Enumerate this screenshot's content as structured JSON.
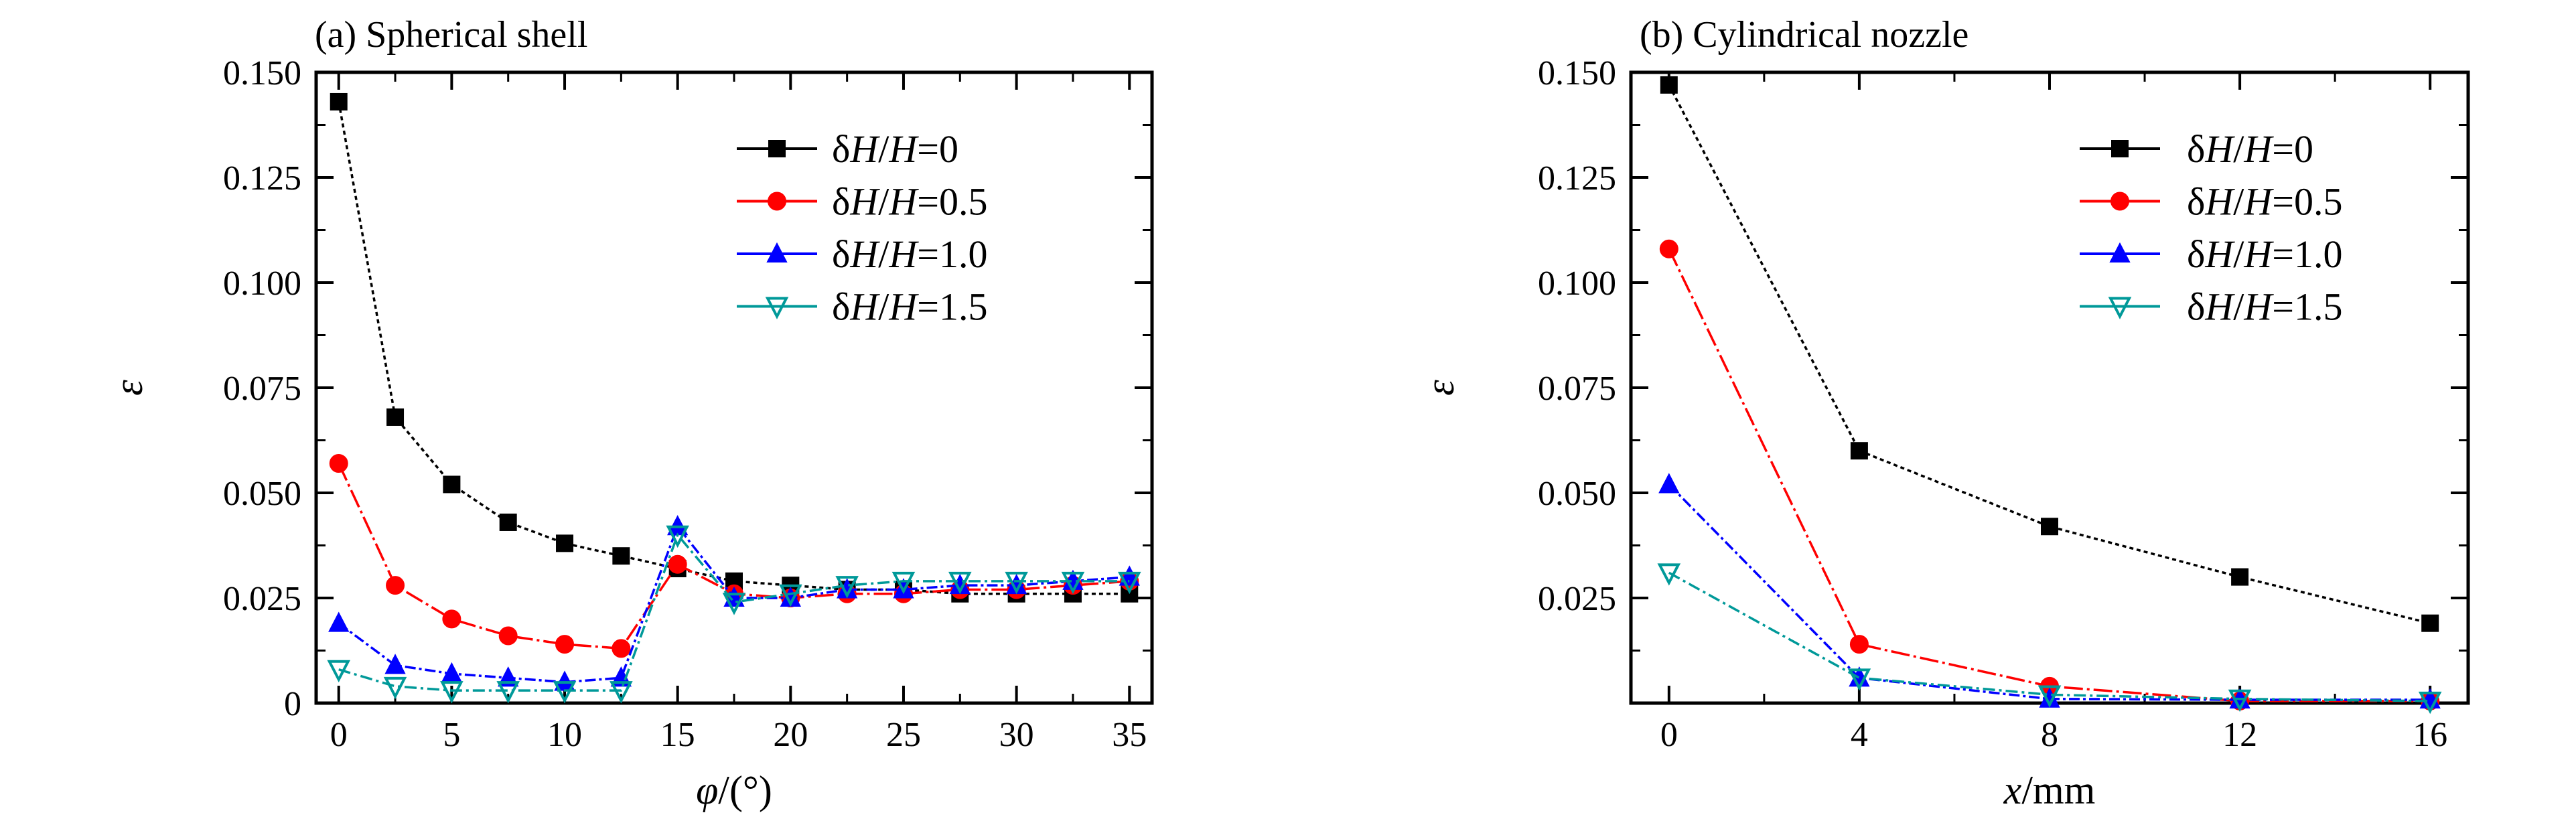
{
  "chart_data": [
    {
      "type": "line",
      "title": "(a) Spherical shell",
      "xlabel_var": "φ",
      "xlabel_unit": "/(°)",
      "ylabel": "ε",
      "xlim": [
        -1,
        36
      ],
      "ylim": [
        0,
        0.15
      ],
      "xticks": [
        0,
        5,
        10,
        15,
        20,
        25,
        30,
        35
      ],
      "xtick_labels": [
        "0",
        "5",
        "10",
        "15",
        "20",
        "25",
        "30",
        "35"
      ],
      "yticks": [
        0,
        0.025,
        0.05,
        0.075,
        0.1,
        0.125,
        0.15
      ],
      "ytick_labels": [
        "0",
        "0.025",
        "0.050",
        "0.075",
        "0.100",
        "0.125",
        "0.150"
      ],
      "legend_position": "top-right",
      "series": [
        {
          "name": "δH/H=0",
          "color": "#000000",
          "marker": "square",
          "x": [
            0,
            2.5,
            5,
            7.5,
            10,
            12.5,
            15,
            17.5,
            20,
            22.5,
            25,
            27.5,
            30,
            32.5,
            35
          ],
          "y": [
            0.143,
            0.068,
            0.052,
            0.043,
            0.038,
            0.035,
            0.032,
            0.029,
            0.028,
            0.027,
            0.027,
            0.026,
            0.026,
            0.026,
            0.026
          ]
        },
        {
          "name": "δH/H=0.5",
          "color": "#ff0000",
          "marker": "circle",
          "x": [
            0,
            2.5,
            5,
            7.5,
            10,
            12.5,
            15,
            17.5,
            20,
            22.5,
            25,
            27.5,
            30,
            32.5,
            35
          ],
          "y": [
            0.057,
            0.028,
            0.02,
            0.016,
            0.014,
            0.013,
            0.033,
            0.026,
            0.025,
            0.026,
            0.026,
            0.027,
            0.027,
            0.028,
            0.029
          ]
        },
        {
          "name": "δH/H=1.0",
          "color": "#0000ff",
          "marker": "triangle-up",
          "x": [
            0,
            2.5,
            5,
            7.5,
            10,
            12.5,
            15,
            17.5,
            20,
            22.5,
            25,
            27.5,
            30,
            32.5,
            35
          ],
          "y": [
            0.019,
            0.009,
            0.007,
            0.006,
            0.005,
            0.006,
            0.042,
            0.025,
            0.025,
            0.027,
            0.027,
            0.028,
            0.028,
            0.029,
            0.03
          ]
        },
        {
          "name": "δH/H=1.5",
          "color": "#009999",
          "marker": "triangle-down",
          "x": [
            0,
            2.5,
            5,
            7.5,
            10,
            12.5,
            15,
            17.5,
            20,
            22.5,
            25,
            27.5,
            30,
            32.5,
            35
          ],
          "y": [
            0.008,
            0.004,
            0.003,
            0.003,
            0.003,
            0.003,
            0.04,
            0.024,
            0.026,
            0.028,
            0.029,
            0.029,
            0.029,
            0.029,
            0.029
          ]
        }
      ]
    },
    {
      "type": "line",
      "title": "(b) Cylindrical nozzle",
      "xlabel_var": "x",
      "xlabel_unit": "/mm",
      "ylabel": "ε",
      "xlim": [
        -0.8,
        16.8
      ],
      "ylim": [
        0,
        0.15
      ],
      "xticks": [
        0,
        4,
        8,
        12,
        16
      ],
      "xtick_labels": [
        "0",
        "4",
        "8",
        "12",
        "16"
      ],
      "yticks": [
        0.025,
        0.05,
        0.075,
        0.1,
        0.125,
        0.15
      ],
      "ytick_labels": [
        "0.025",
        "0.050",
        "0.075",
        "0.100",
        "0.125",
        "0.150"
      ],
      "legend_position": "top-right",
      "series": [
        {
          "name": "δH/H=0",
          "color": "#000000",
          "marker": "square",
          "x": [
            0,
            4,
            8,
            12,
            16
          ],
          "y": [
            0.147,
            0.06,
            0.042,
            0.03,
            0.019
          ]
        },
        {
          "name": "δH/H=0.5",
          "color": "#ff0000",
          "marker": "circle",
          "x": [
            0,
            4,
            8,
            12,
            16
          ],
          "y": [
            0.108,
            0.014,
            0.004,
            0.0005,
            0.0005
          ]
        },
        {
          "name": "δH/H=1.0",
          "color": "#0000ff",
          "marker": "triangle-up",
          "x": [
            0,
            4,
            8,
            12,
            16
          ],
          "y": [
            0.052,
            0.006,
            0.001,
            0.0008,
            0.0008
          ]
        },
        {
          "name": "δH/H=1.5",
          "color": "#009999",
          "marker": "triangle-down",
          "x": [
            0,
            4,
            8,
            12,
            16
          ],
          "y": [
            0.031,
            0.006,
            0.002,
            0.001,
            0.0005
          ]
        }
      ]
    }
  ]
}
